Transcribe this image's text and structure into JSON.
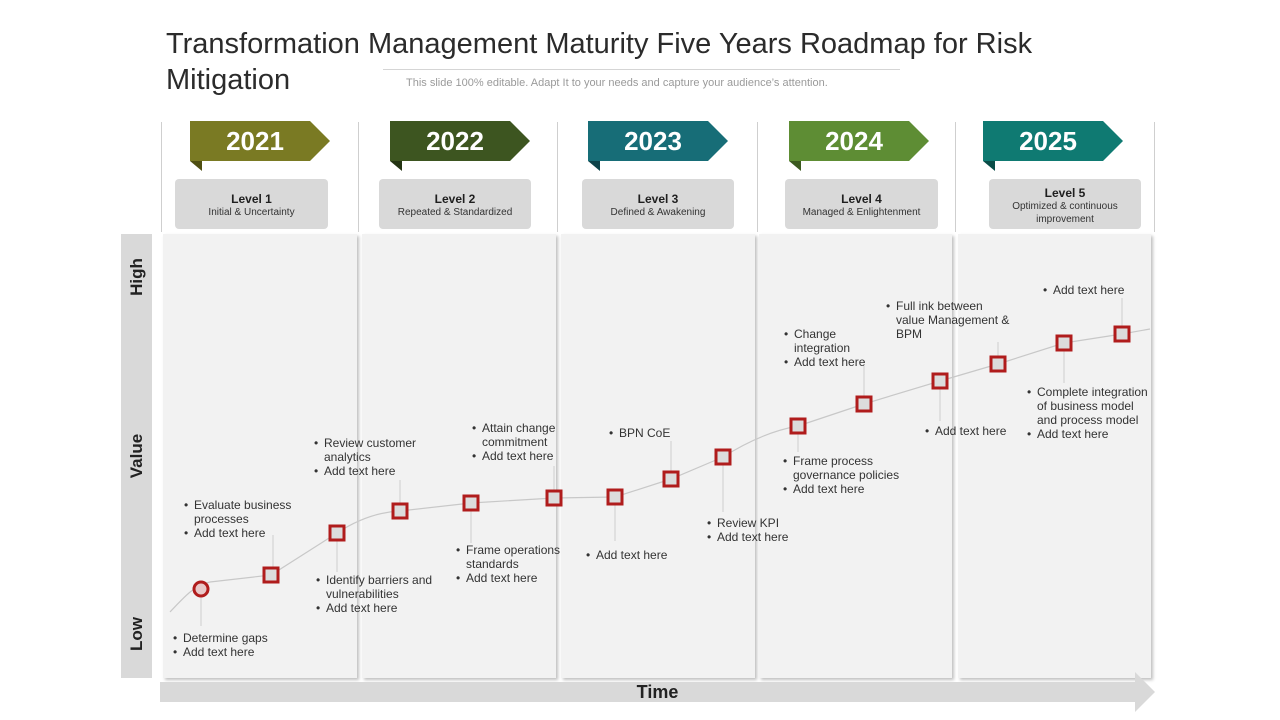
{
  "title": "Transformation  Management Maturity Five Years Roadmap for Risk Mitigation",
  "subtitle": "This slide 100% editable. Adapt  It to your needs and capture your audience’s attention.",
  "axes": {
    "y_high": "High",
    "y_mid": "Value",
    "y_low": "Low",
    "x_label": "Time"
  },
  "columns": [
    {
      "year": "2021",
      "color": "#7a7a23",
      "level": "Level 1",
      "desc": "Initial & Uncertainty"
    },
    {
      "year": "2022",
      "color": "#3d5520",
      "level": "Level 2",
      "desc": "Repeated & Standardized"
    },
    {
      "year": "2023",
      "color": "#176d77",
      "level": "Level 3",
      "desc": "Defined & Awakening"
    },
    {
      "year": "2024",
      "color": "#5e8d34",
      "level": "Level 4",
      "desc": "Managed & Enlightenment"
    },
    {
      "year": "2025",
      "color": "#0f7a72",
      "level": "Level 5",
      "desc": "Optimized & continuous improvement"
    }
  ],
  "notes": [
    {
      "lines": [
        "Determine gaps",
        "Add text here"
      ]
    },
    {
      "lines": [
        "Evaluate business processes",
        "Add text here"
      ]
    },
    {
      "lines": [
        "Identify barriers and vulnerabilities",
        "Add text here"
      ]
    },
    {
      "lines": [
        "Review customer analytics",
        "Add text here"
      ]
    },
    {
      "lines": [
        "Frame operations standards",
        "Add text here"
      ]
    },
    {
      "lines": [
        "Attain change commitment",
        "Add text here"
      ]
    },
    {
      "lines": [
        "Add text here"
      ]
    },
    {
      "lines": [
        "BPN CoE"
      ]
    },
    {
      "lines": [
        "Review KPI",
        "Add text here"
      ]
    },
    {
      "lines": [
        "Frame process governance policies",
        "Add text here"
      ]
    },
    {
      "lines": [
        "Change integration",
        "Add text here"
      ]
    },
    {
      "lines": [
        "Add text here"
      ]
    },
    {
      "lines": [
        "Full ink between value Management & BPM"
      ]
    },
    {
      "lines": [
        "Add text here"
      ]
    },
    {
      "lines": [
        "Complete integration of business model and process model",
        "Add text here"
      ]
    }
  ],
  "colors": {
    "marker": "#b01c1c",
    "curve": "#c8c8c8",
    "panel": "#f2f2f2"
  }
}
